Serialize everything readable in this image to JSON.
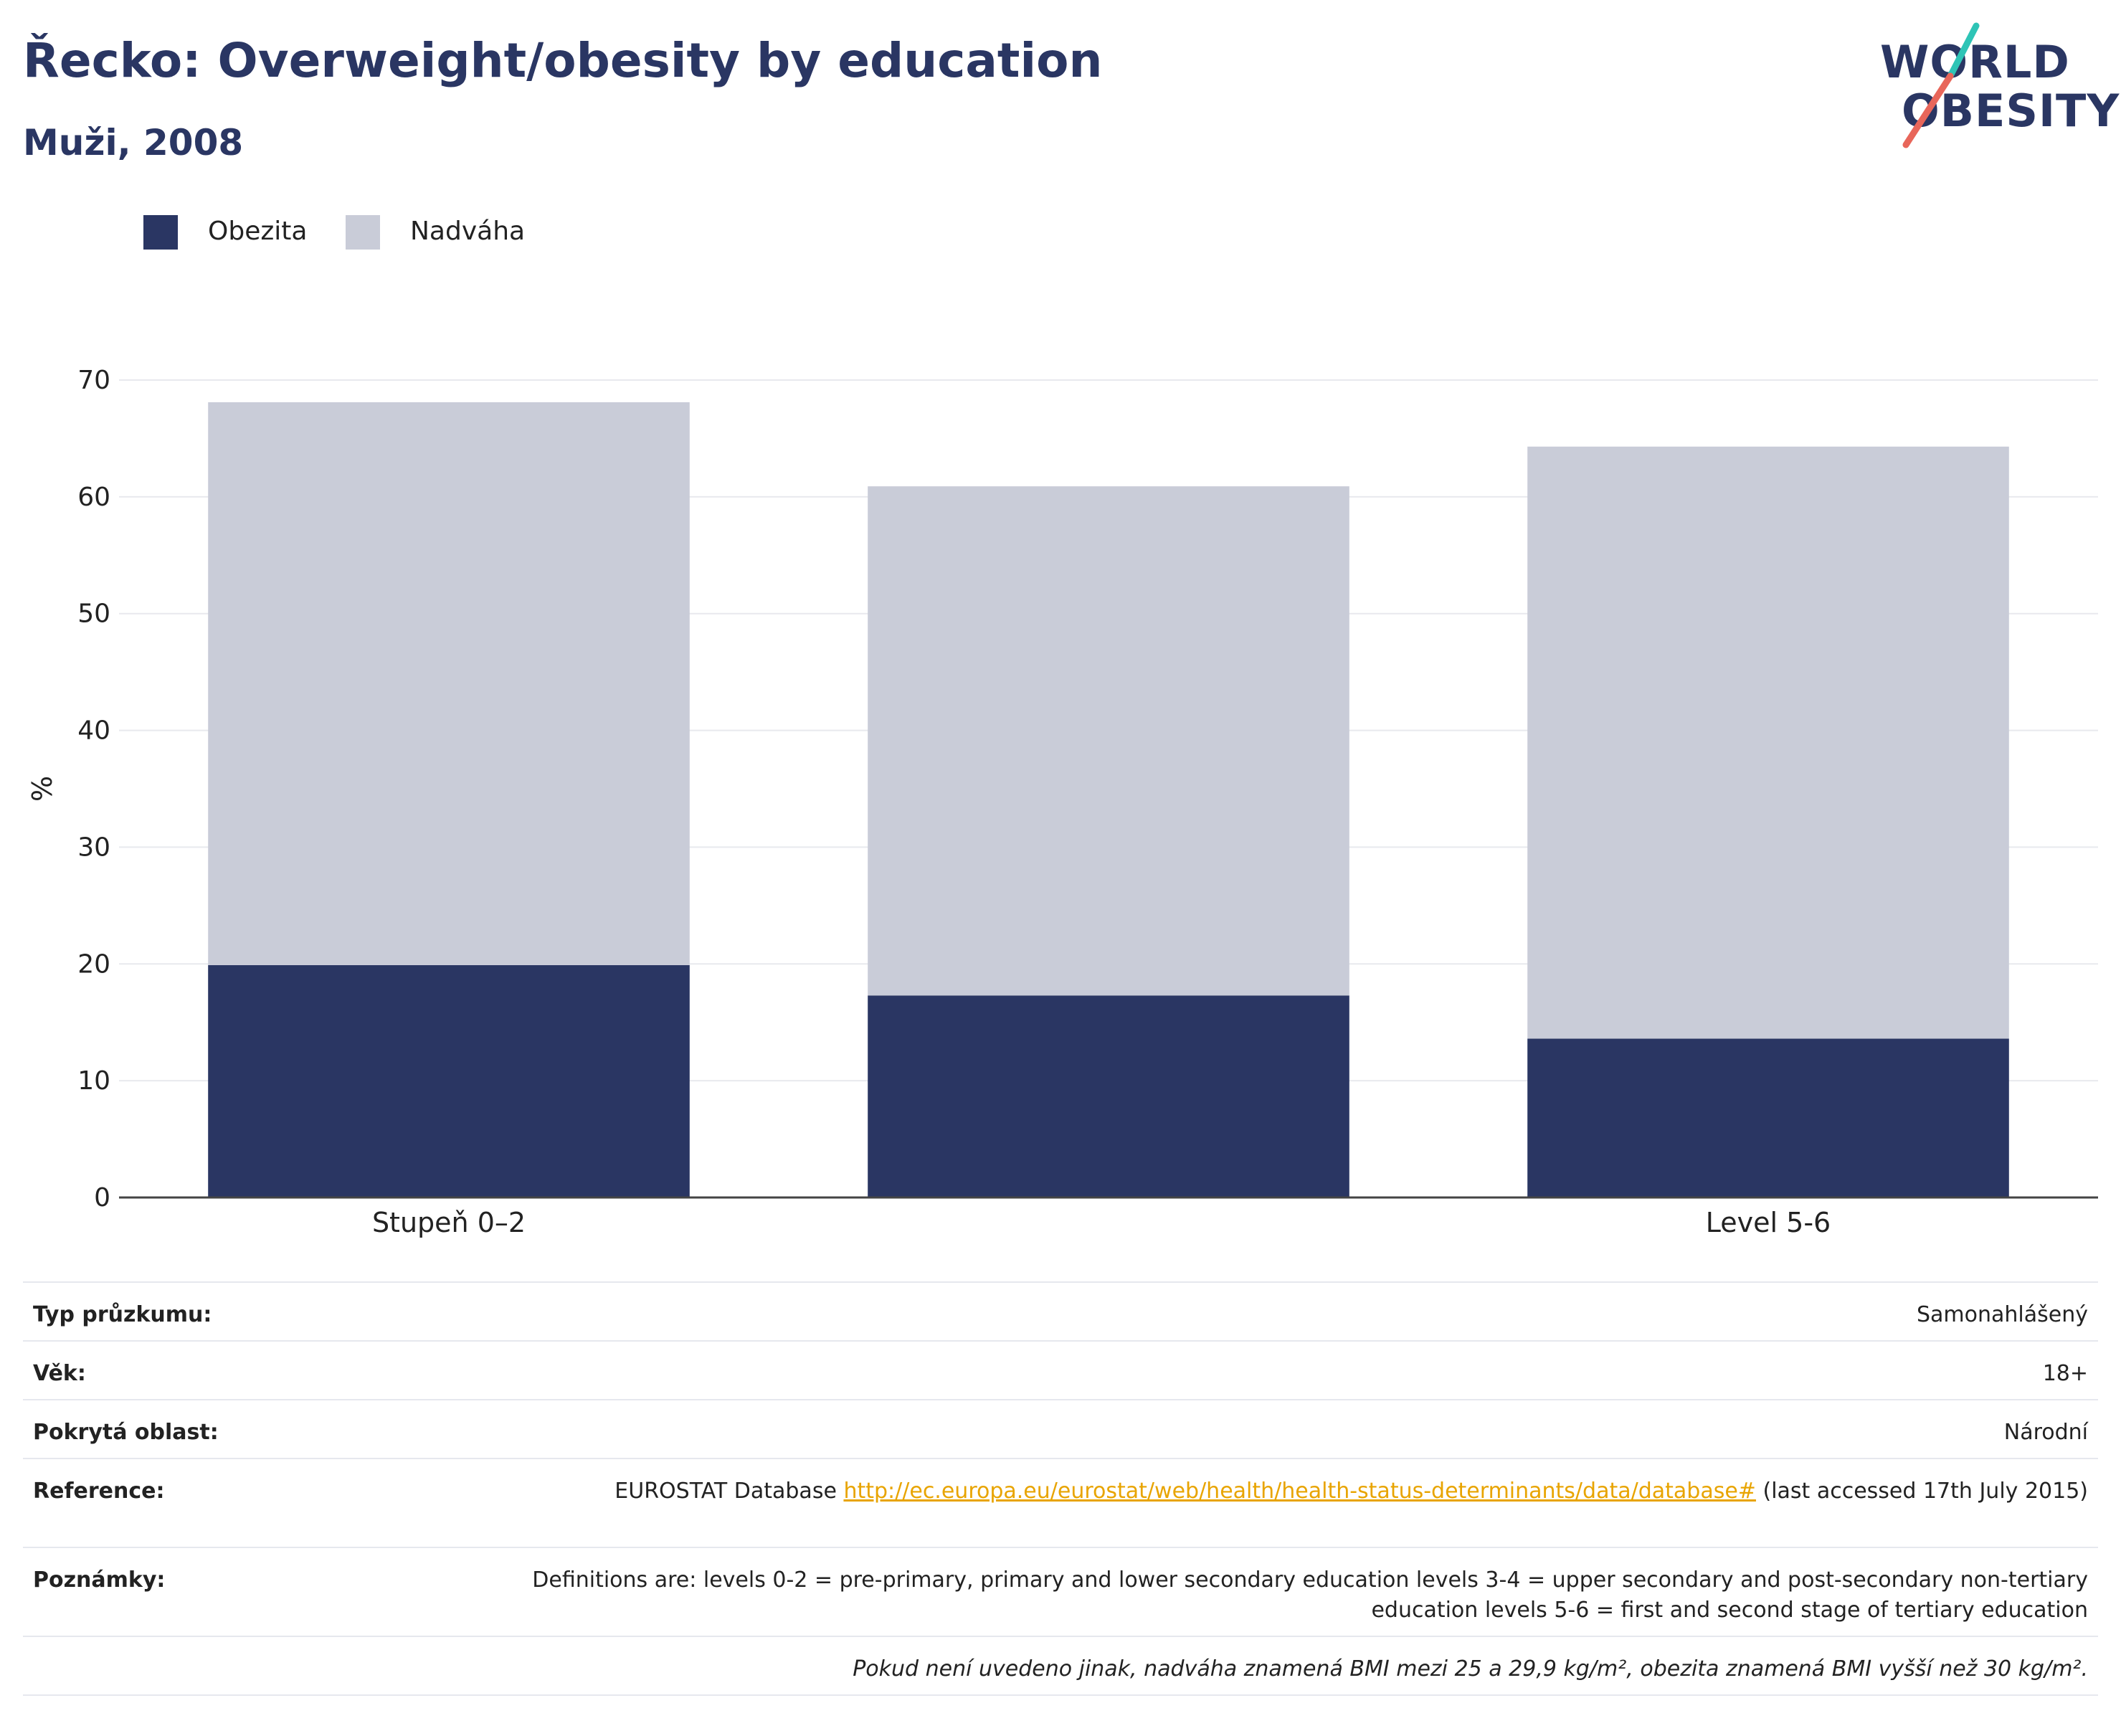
{
  "title": "Řecko: Overweight/obesity by education",
  "subtitle": "Muži, 2008",
  "logo": {
    "line1": "WORLD",
    "line2": "OBESITY"
  },
  "colors": {
    "obesity": "#2a3663",
    "overweight": "#c9ccd8",
    "accent_teal": "#2ec4b6",
    "accent_red": "#e8665a",
    "link": "#e8a400"
  },
  "legend": [
    {
      "label": "Obezita",
      "color": "#2a3663"
    },
    {
      "label": "Nadváha",
      "color": "#c9ccd8"
    }
  ],
  "chart_data": {
    "type": "bar",
    "stacked": true,
    "categories": [
      "Stupeň 0–2",
      "",
      "Level 5-6"
    ],
    "series": [
      {
        "name": "Obezita",
        "values": [
          19.9,
          17.3,
          13.6
        ]
      },
      {
        "name": "Nadváha",
        "values": [
          48.2,
          43.6,
          50.7
        ]
      }
    ],
    "ylabel": "%",
    "ylim": [
      0,
      70
    ],
    "yticks": [
      0,
      10,
      20,
      30,
      40,
      50,
      60,
      70
    ],
    "grid": true,
    "legend_position": "top-left"
  },
  "meta": {
    "survey_label": "Typ průzkumu:",
    "survey_value": "Samonahlášený",
    "age_label": "Věk:",
    "age_value": "18+",
    "area_label": "Pokrytá oblast:",
    "area_value": "Národní",
    "ref_label": "Reference:",
    "ref_prefix": "EUROSTAT Database ",
    "ref_link": "http://ec.europa.eu/eurostat/web/health/health-status-determinants/data/database#",
    "ref_suffix": " (last accessed 17th July 2015)",
    "notes_label": "Poznámky:",
    "notes_value": "Definitions are: levels 0-2 = pre-primary, primary and lower secondary education levels 3-4 = upper secondary and post-secondary non-tertiary education levels 5-6 = first and second stage of tertiary education",
    "footnote": "Pokud není uvedeno jinak, nadváha znamená BMI mezi 25 a 29,9 kg/m², obezita znamená BMI vyšší než 30 kg/m²."
  }
}
